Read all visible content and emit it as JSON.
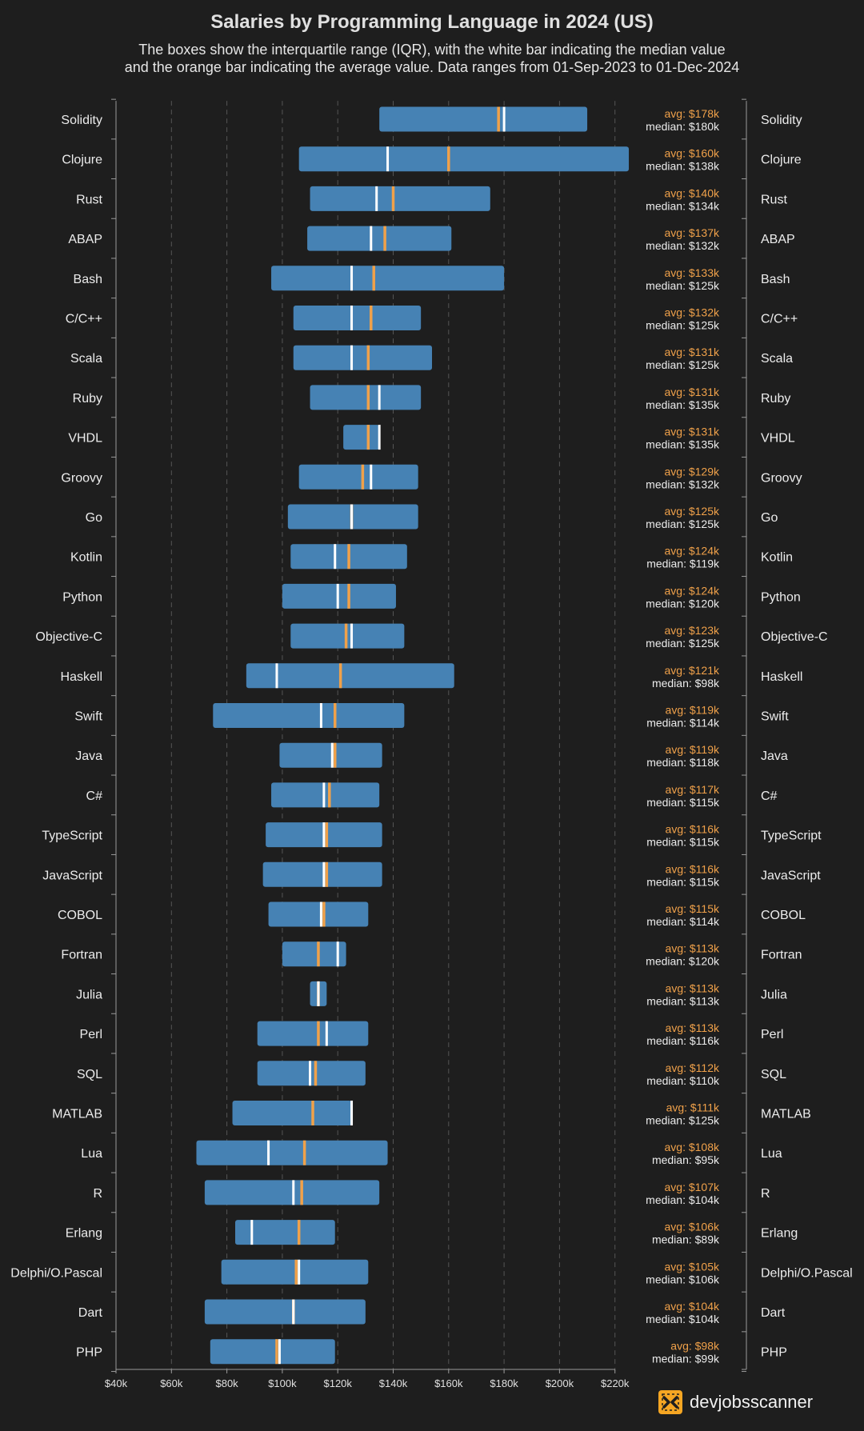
{
  "chart_data": {
    "type": "box",
    "title": "Salaries by Programming Language in 2024 (US)",
    "subtitle_line1": "The boxes show the interquartile range (IQR), with the white bar indicating the median value",
    "subtitle_line2": "and the orange bar indicating the average value. Data ranges from 01-Sep-2023 to 01-Dec-2024",
    "x_unit": "thousand USD",
    "xlim": [
      40,
      220
    ],
    "x_ticks": [
      40,
      60,
      80,
      100,
      120,
      140,
      160,
      180,
      200,
      220
    ],
    "x_tick_labels": [
      "$40k",
      "$60k",
      "$80k",
      "$100k",
      "$120k",
      "$140k",
      "$160k",
      "$180k",
      "$200k",
      "$220k"
    ],
    "grid": "vertical dashed",
    "avg_prefix": "avg: ",
    "median_prefix": "median: ",
    "colors": {
      "box": "#4682b4",
      "median": "#ffffff",
      "average": "#f0a14a",
      "grid": "#555555",
      "background": "#1e1e1e"
    },
    "series": [
      {
        "language": "Solidity",
        "q1": 135,
        "q3": 210,
        "median": 180,
        "average": 178,
        "avg_label": "$178k",
        "median_label": "$180k"
      },
      {
        "language": "Clojure",
        "q1": 106,
        "q3": 225,
        "median": 138,
        "average": 160,
        "avg_label": "$160k",
        "median_label": "$138k"
      },
      {
        "language": "Rust",
        "q1": 110,
        "q3": 175,
        "median": 134,
        "average": 140,
        "avg_label": "$140k",
        "median_label": "$134k"
      },
      {
        "language": "ABAP",
        "q1": 109,
        "q3": 161,
        "median": 132,
        "average": 137,
        "avg_label": "$137k",
        "median_label": "$132k"
      },
      {
        "language": "Bash",
        "q1": 96,
        "q3": 180,
        "median": 125,
        "average": 133,
        "avg_label": "$133k",
        "median_label": "$125k"
      },
      {
        "language": "C/C++",
        "q1": 104,
        "q3": 150,
        "median": 125,
        "average": 132,
        "avg_label": "$132k",
        "median_label": "$125k"
      },
      {
        "language": "Scala",
        "q1": 104,
        "q3": 154,
        "median": 125,
        "average": 131,
        "avg_label": "$131k",
        "median_label": "$125k"
      },
      {
        "language": "Ruby",
        "q1": 110,
        "q3": 150,
        "median": 135,
        "average": 131,
        "avg_label": "$131k",
        "median_label": "$135k"
      },
      {
        "language": "VHDL",
        "q1": 122,
        "q3": 135,
        "median": 135,
        "average": 131,
        "avg_label": "$131k",
        "median_label": "$135k"
      },
      {
        "language": "Groovy",
        "q1": 106,
        "q3": 149,
        "median": 132,
        "average": 129,
        "avg_label": "$129k",
        "median_label": "$132k"
      },
      {
        "language": "Go",
        "q1": 102,
        "q3": 149,
        "median": 125,
        "average": 125,
        "avg_label": "$125k",
        "median_label": "$125k"
      },
      {
        "language": "Kotlin",
        "q1": 103,
        "q3": 145,
        "median": 119,
        "average": 124,
        "avg_label": "$124k",
        "median_label": "$119k"
      },
      {
        "language": "Python",
        "q1": 100,
        "q3": 141,
        "median": 120,
        "average": 124,
        "avg_label": "$124k",
        "median_label": "$120k"
      },
      {
        "language": "Objective-C",
        "q1": 103,
        "q3": 144,
        "median": 125,
        "average": 123,
        "avg_label": "$123k",
        "median_label": "$125k"
      },
      {
        "language": "Haskell",
        "q1": 87,
        "q3": 162,
        "median": 98,
        "average": 121,
        "avg_label": "$121k",
        "median_label": "$98k"
      },
      {
        "language": "Swift",
        "q1": 75,
        "q3": 144,
        "median": 114,
        "average": 119,
        "avg_label": "$119k",
        "median_label": "$114k"
      },
      {
        "language": "Java",
        "q1": 99,
        "q3": 136,
        "median": 118,
        "average": 119,
        "avg_label": "$119k",
        "median_label": "$118k"
      },
      {
        "language": "C#",
        "q1": 96,
        "q3": 135,
        "median": 115,
        "average": 117,
        "avg_label": "$117k",
        "median_label": "$115k"
      },
      {
        "language": "TypeScript",
        "q1": 94,
        "q3": 136,
        "median": 115,
        "average": 116,
        "avg_label": "$116k",
        "median_label": "$115k"
      },
      {
        "language": "JavaScript",
        "q1": 93,
        "q3": 136,
        "median": 115,
        "average": 116,
        "avg_label": "$116k",
        "median_label": "$115k"
      },
      {
        "language": "COBOL",
        "q1": 95,
        "q3": 131,
        "median": 114,
        "average": 115,
        "avg_label": "$115k",
        "median_label": "$114k"
      },
      {
        "language": "Fortran",
        "q1": 100,
        "q3": 123,
        "median": 120,
        "average": 113,
        "avg_label": "$113k",
        "median_label": "$120k"
      },
      {
        "language": "Julia",
        "q1": 110,
        "q3": 116,
        "median": 113,
        "average": 113,
        "avg_label": "$113k",
        "median_label": "$113k"
      },
      {
        "language": "Perl",
        "q1": 91,
        "q3": 131,
        "median": 116,
        "average": 113,
        "avg_label": "$113k",
        "median_label": "$116k"
      },
      {
        "language": "SQL",
        "q1": 91,
        "q3": 130,
        "median": 110,
        "average": 112,
        "avg_label": "$112k",
        "median_label": "$110k"
      },
      {
        "language": "MATLAB",
        "q1": 82,
        "q3": 125,
        "median": 125,
        "average": 111,
        "avg_label": "$111k",
        "median_label": "$125k"
      },
      {
        "language": "Lua",
        "q1": 69,
        "q3": 138,
        "median": 95,
        "average": 108,
        "avg_label": "$108k",
        "median_label": "$95k"
      },
      {
        "language": "R",
        "q1": 72,
        "q3": 135,
        "median": 104,
        "average": 107,
        "avg_label": "$107k",
        "median_label": "$104k"
      },
      {
        "language": "Erlang",
        "q1": 83,
        "q3": 119,
        "median": 89,
        "average": 106,
        "avg_label": "$106k",
        "median_label": "$89k"
      },
      {
        "language": "Delphi/O.Pascal",
        "q1": 78,
        "q3": 131,
        "median": 106,
        "average": 105,
        "avg_label": "$105k",
        "median_label": "$106k"
      },
      {
        "language": "Dart",
        "q1": 72,
        "q3": 130,
        "median": 104,
        "average": 104,
        "avg_label": "$104k",
        "median_label": "$104k"
      },
      {
        "language": "PHP",
        "q1": 74,
        "q3": 119,
        "median": 99,
        "average": 98,
        "avg_label": "$98k",
        "median_label": "$99k"
      }
    ]
  },
  "footer": {
    "brand": "devjobsscanner",
    "logo_icon": "devjobsscanner-logo-icon"
  }
}
